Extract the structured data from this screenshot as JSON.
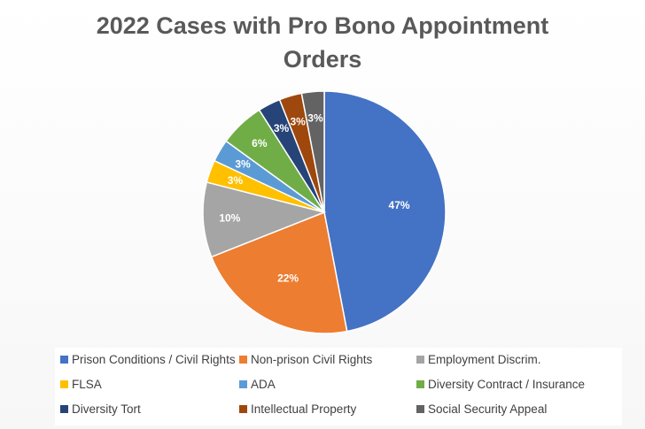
{
  "chart_data": {
    "type": "pie",
    "title_line1": "2022 Cases with Pro Bono Appointment",
    "title_line2": "Orders",
    "slices": [
      {
        "name": "Prison Conditions / Civil Rights",
        "value": 47,
        "label": "47%",
        "color": "#4472C4"
      },
      {
        "name": "Non-prison Civil Rights",
        "value": 22,
        "label": "22%",
        "color": "#ED7D31"
      },
      {
        "name": "Employment Discrim.",
        "value": 10,
        "label": "10%",
        "color": "#A5A5A5"
      },
      {
        "name": "FLSA",
        "value": 3,
        "label": "3%",
        "color": "#FFC000"
      },
      {
        "name": "ADA",
        "value": 3,
        "label": "3%",
        "color": "#5B9BD5"
      },
      {
        "name": "Diversity Contract / Insurance",
        "value": 6,
        "label": "6%",
        "color": "#70AD47"
      },
      {
        "name": "Diversity Tort",
        "value": 3,
        "label": "3%",
        "color": "#264478"
      },
      {
        "name": "Intellectual Property",
        "value": 3,
        "label": "3%",
        "color": "#9E480E"
      },
      {
        "name": "Social Security Appeal",
        "value": 3,
        "label": "3%",
        "color": "#636363"
      }
    ],
    "legend_position": "bottom"
  }
}
